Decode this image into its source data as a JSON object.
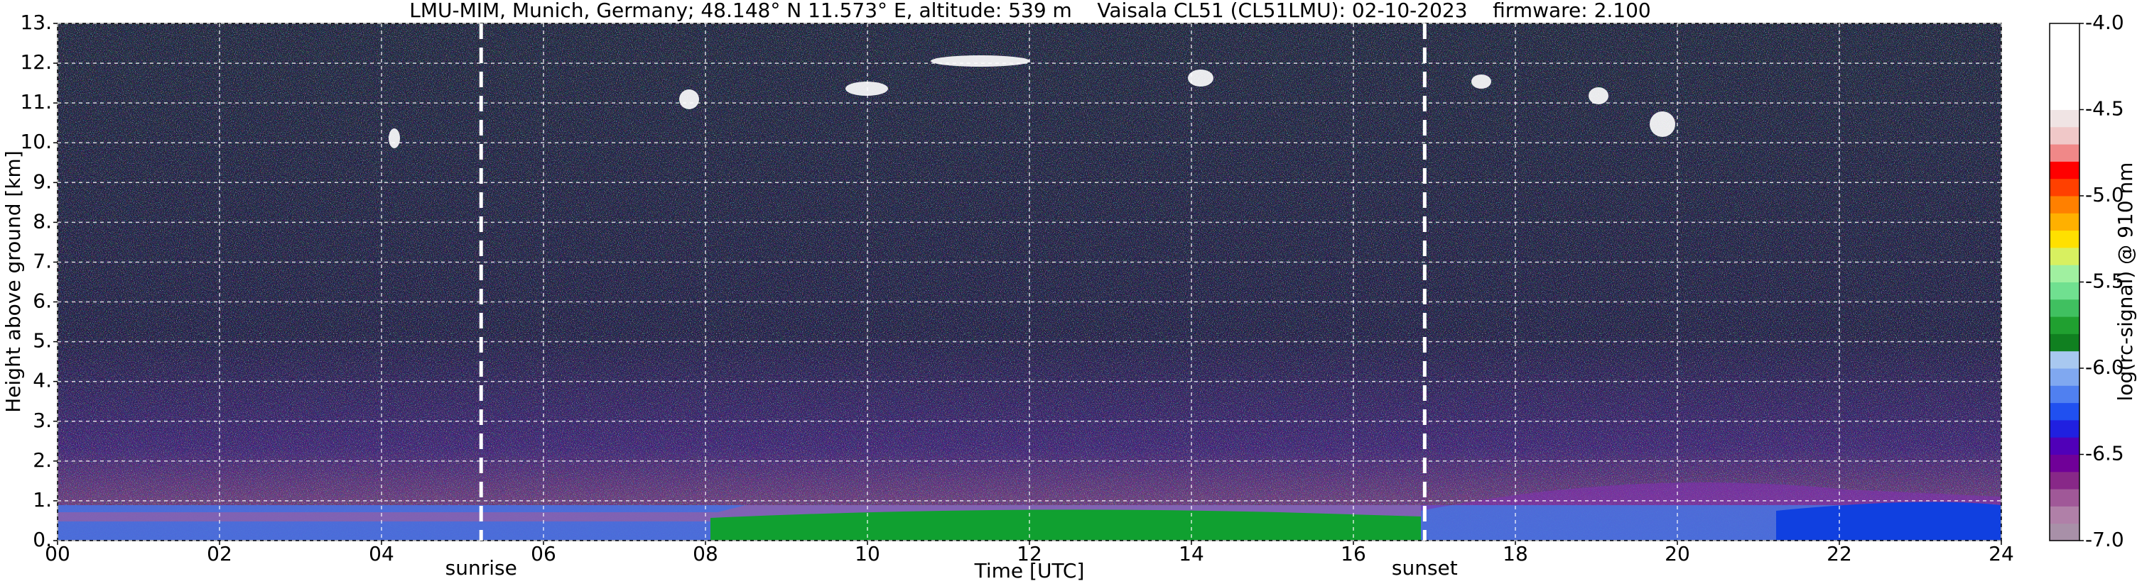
{
  "chart_data": {
    "type": "heatmap",
    "title": "LMU-MIM, Munich, Germany; 48.148° N 11.573° E, altitude: 539 m    Vaisala CL51 (CL51LMU): 02-10-2023    firmware: 2.100",
    "xlabel": "Time [UTC]",
    "ylabel": "Height above ground [km]",
    "xlim": [
      0,
      24
    ],
    "ylim": [
      0,
      13
    ],
    "xticks": [
      {
        "value": 0,
        "label": "00"
      },
      {
        "value": 2,
        "label": "02"
      },
      {
        "value": 4,
        "label": "04"
      },
      {
        "value": 6,
        "label": "06"
      },
      {
        "value": 8,
        "label": "08"
      },
      10,
      12,
      14,
      16,
      18,
      20,
      22,
      24
    ],
    "yticks": [
      {
        "value": 0,
        "label": "0."
      },
      {
        "value": 1,
        "label": "1."
      },
      {
        "value": 2,
        "label": "2."
      },
      {
        "value": 3,
        "label": "3."
      },
      {
        "value": 4,
        "label": "4."
      },
      {
        "value": 5,
        "label": "5."
      },
      {
        "value": 6,
        "label": "6."
      },
      {
        "value": 7,
        "label": "7."
      },
      {
        "value": 8,
        "label": "8."
      },
      {
        "value": 9,
        "label": "9."
      },
      {
        "value": 10,
        "label": "10."
      },
      {
        "value": 11,
        "label": "11."
      },
      {
        "value": 12,
        "label": "12."
      },
      {
        "value": 13,
        "label": "13."
      }
    ],
    "grid": true,
    "vlines": [
      {
        "x": 5.23,
        "label": "sunrise"
      },
      {
        "x": 16.88,
        "label": "sunset"
      }
    ],
    "colorbar": {
      "label": "log(rc-signal) @ 910 nm",
      "lim": [
        -7,
        -4
      ],
      "ticks": [
        {
          "value": -4,
          "label": "-4.0"
        },
        -4.5,
        {
          "value": -5,
          "label": "-5.0"
        },
        -5.5,
        {
          "value": -6,
          "label": "-6.0"
        },
        -6.5,
        {
          "value": -7,
          "label": "-7.0"
        }
      ],
      "colors": [
        "#a890a8",
        "#b080a8",
        "#a05898",
        "#882888",
        "#700098",
        "#5000b8",
        "#2020e0",
        "#2050f0",
        "#5080f0",
        "#80a8f0",
        "#a8c8f0",
        "#108020",
        "#20a030",
        "#40c060",
        "#70e090",
        "#a0f0a0",
        "#d8f060",
        "#ffe000",
        "#ffb000",
        "#ff8000",
        "#ff4000",
        "#ff0000",
        "#f08888",
        "#f0c8c8",
        "#f0e4e4",
        "#ffffff",
        "#ffffff",
        "#ffffff",
        "#ffffff",
        "#ffffff"
      ]
    }
  }
}
